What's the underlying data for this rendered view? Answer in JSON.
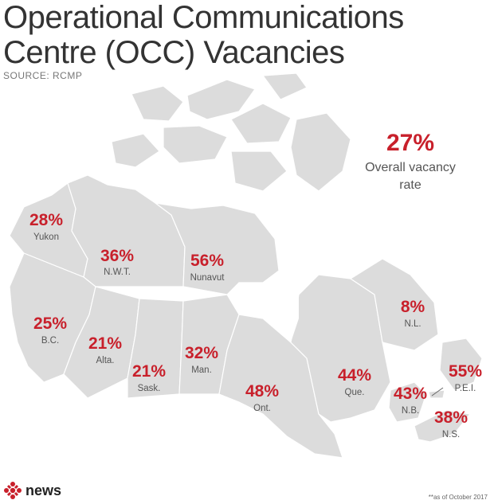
{
  "title_line1": "Operational Communications",
  "title_line2": "Centre (OCC) Vacancies",
  "source": "SOURCE: RCMP",
  "overall": {
    "value": "27%",
    "label_line1": "Overall vacancy",
    "label_line2": "rate"
  },
  "regions": [
    {
      "id": "yukon",
      "value": "28%",
      "label": "Yukon"
    },
    {
      "id": "nwt",
      "value": "36%",
      "label": "N.W.T."
    },
    {
      "id": "nunavut",
      "value": "56%",
      "label": "Nunavut"
    },
    {
      "id": "bc",
      "value": "25%",
      "label": "B.C."
    },
    {
      "id": "alberta",
      "value": "21%",
      "label": "Alta."
    },
    {
      "id": "sask",
      "value": "21%",
      "label": "Sask."
    },
    {
      "id": "manitoba",
      "value": "32%",
      "label": "Man."
    },
    {
      "id": "ontario",
      "value": "48%",
      "label": "Ont."
    },
    {
      "id": "quebec",
      "value": "44%",
      "label": "Que."
    },
    {
      "id": "nl",
      "value": "8%",
      "label": "N.L."
    },
    {
      "id": "nb",
      "value": "43%",
      "label": "N.B."
    },
    {
      "id": "pei",
      "value": "55%",
      "label": "P.E.I."
    },
    {
      "id": "ns",
      "value": "38%",
      "label": "N.S."
    }
  ],
  "logo_text": "news",
  "footnote": "**as of October 2017",
  "colors": {
    "accent": "#c8202b",
    "land": "#dcdcdc",
    "border": "#ffffff"
  }
}
